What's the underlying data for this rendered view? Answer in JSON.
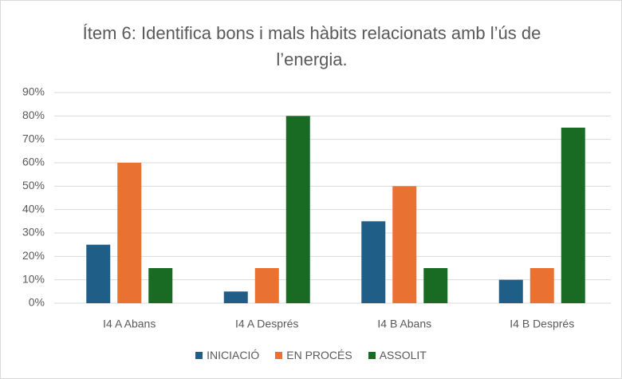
{
  "chart_data": {
    "type": "bar",
    "title": "Ítem 6: Identifica bons i mals hàbits relacionats amb l’ús de l’energia.",
    "categories": [
      "I4 A Abans",
      "I4 A Després",
      "I4 B Abans",
      "I4 B Després"
    ],
    "series": [
      {
        "name": "INICIACIÓ",
        "color": "#1f5f87",
        "values": [
          25,
          5,
          35,
          10
        ]
      },
      {
        "name": "EN PROCÉS",
        "color": "#e97132",
        "values": [
          60,
          15,
          50,
          15
        ]
      },
      {
        "name": "ASSOLIT",
        "color": "#196b24",
        "values": [
          15,
          80,
          15,
          75
        ]
      }
    ],
    "ylim": [
      0,
      90
    ],
    "yticks": [
      {
        "value": 0,
        "label": "0%"
      },
      {
        "value": 10,
        "label": "10%"
      },
      {
        "value": 20,
        "label": "20%"
      },
      {
        "value": 30,
        "label": "30%"
      },
      {
        "value": 40,
        "label": "40%"
      },
      {
        "value": 50,
        "label": "50%"
      },
      {
        "value": 60,
        "label": "60%"
      },
      {
        "value": 70,
        "label": "70%"
      },
      {
        "value": 80,
        "label": "80%"
      },
      {
        "value": 90,
        "label": "90%"
      }
    ],
    "grid": true,
    "legend": "bottom"
  }
}
